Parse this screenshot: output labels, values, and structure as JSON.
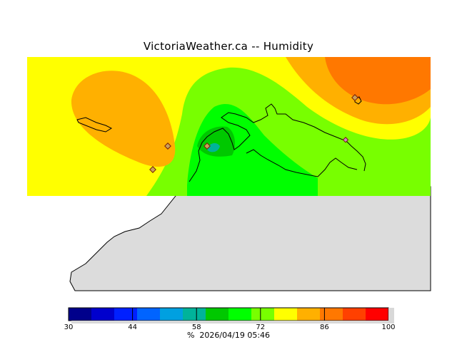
{
  "title": "VictoriaWeather.ca -- Humidity",
  "footer": {
    "unit": "%",
    "timestamp": "2026/04/19 05:46"
  },
  "legend": {
    "min": 30,
    "max": 100,
    "tick_labels": [
      "30",
      "44",
      "58",
      "72",
      "86",
      "100"
    ],
    "bands": [
      {
        "from": 30,
        "to": 35,
        "color": "#00008b"
      },
      {
        "from": 35,
        "to": 40,
        "color": "#0000cd"
      },
      {
        "from": 40,
        "to": 45,
        "color": "#0020ff"
      },
      {
        "from": 45,
        "to": 50,
        "color": "#0064ff"
      },
      {
        "from": 50,
        "to": 55,
        "color": "#00a0e0"
      },
      {
        "from": 55,
        "to": 60,
        "color": "#00b39a"
      },
      {
        "from": 60,
        "to": 65,
        "color": "#00c800"
      },
      {
        "from": 65,
        "to": 70,
        "color": "#00ff00"
      },
      {
        "from": 70,
        "to": 75,
        "color": "#78ff00"
      },
      {
        "from": 75,
        "to": 80,
        "color": "#ffff00"
      },
      {
        "from": 80,
        "to": 85,
        "color": "#ffb000"
      },
      {
        "from": 85,
        "to": 90,
        "color": "#ff7800"
      },
      {
        "from": 90,
        "to": 95,
        "color": "#ff4000"
      },
      {
        "from": 95,
        "to": 100,
        "color": "#ff0000"
      }
    ]
  },
  "colors": {
    "land": "#dcdcdc",
    "coast": "#000000",
    "yellow": "#ffff00",
    "orange_light": "#ffb000",
    "orange_dark": "#ff7800",
    "green_light": "#78ff00",
    "green": "#00ff00",
    "green_dark": "#00c800",
    "teal": "#00b39a"
  },
  "station_markers": [
    {
      "name": "station-marker"
    },
    {
      "name": "station-marker"
    },
    {
      "name": "station-marker"
    },
    {
      "name": "station-marker"
    },
    {
      "name": "station-marker"
    }
  ]
}
